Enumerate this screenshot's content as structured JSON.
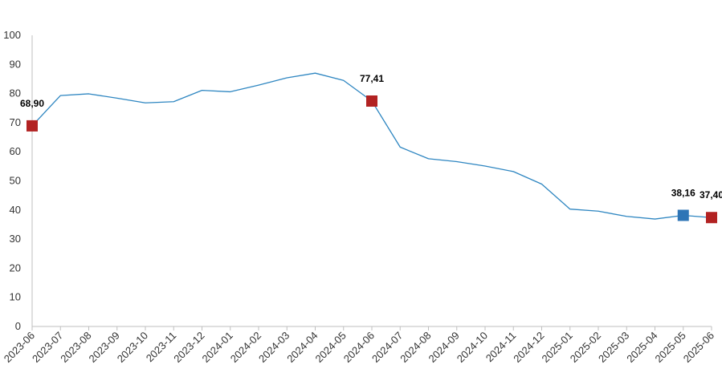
{
  "chart_data": {
    "type": "line",
    "title": "",
    "xlabel": "",
    "ylabel": "",
    "ylim": [
      0,
      100
    ],
    "yticks": [
      "0",
      "10",
      "20",
      "30",
      "40",
      "50",
      "60",
      "70",
      "80",
      "90",
      "100"
    ],
    "grid": false,
    "legend": "none",
    "categories": [
      "2023-06",
      "2023-07",
      "2023-08",
      "2023-09",
      "2023-10",
      "2023-11",
      "2023-12",
      "2024-01",
      "2024-02",
      "2024-03",
      "2024-04",
      "2024-05",
      "2024-06",
      "2024-07",
      "2024-08",
      "2024-09",
      "2024-10",
      "2024-11",
      "2024-12",
      "2025-01",
      "2025-02",
      "2025-03",
      "2025-04",
      "2025-05",
      "2025-06"
    ],
    "series": [
      {
        "name": "",
        "color": "#2e86c1",
        "values": [
          68.9,
          79.3,
          79.9,
          78.4,
          76.8,
          77.2,
          81.1,
          80.6,
          82.9,
          85.4,
          87.0,
          84.5,
          77.41,
          61.6,
          57.6,
          56.6,
          55.1,
          53.2,
          48.9,
          40.3,
          39.6,
          37.8,
          36.9,
          38.16,
          37.4
        ]
      }
    ],
    "annotations": [
      {
        "index": 0,
        "label": "68,90",
        "color": "#b22222"
      },
      {
        "index": 12,
        "label": "77,41",
        "color": "#b22222"
      },
      {
        "index": 23,
        "label": "38,16",
        "color": "#2e75b6"
      },
      {
        "index": 24,
        "label": "37,40",
        "color": "#b22222"
      }
    ]
  }
}
